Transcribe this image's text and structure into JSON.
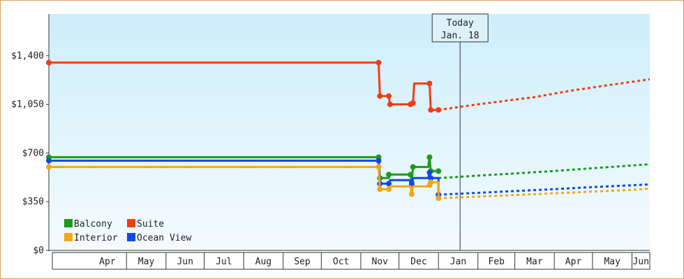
{
  "chart_data": {
    "type": "line",
    "x_unit": "date",
    "y_unit": "USD",
    "ylim": [
      0,
      1700
    ],
    "yticks": [
      {
        "value": 0,
        "label": "$0"
      },
      {
        "value": 350,
        "label": "$350"
      },
      {
        "value": 700,
        "label": "$700"
      },
      {
        "value": 1050,
        "label": "$1,050"
      },
      {
        "value": 1400,
        "label": "$1,400"
      }
    ],
    "xlim": [
      "2023-03-01",
      "2024-06-15"
    ],
    "months": [
      {
        "label": "Apr",
        "start": "2023-04-01",
        "end": "2023-05-01"
      },
      {
        "label": "May",
        "start": "2023-05-01",
        "end": "2023-06-01"
      },
      {
        "label": "Jun",
        "start": "2023-06-01",
        "end": "2023-07-01"
      },
      {
        "label": "Jul",
        "start": "2023-07-01",
        "end": "2023-08-01"
      },
      {
        "label": "Aug",
        "start": "2023-08-01",
        "end": "2023-09-01"
      },
      {
        "label": "Sep",
        "start": "2023-09-01",
        "end": "2023-10-01"
      },
      {
        "label": "Oct",
        "start": "2023-10-01",
        "end": "2023-11-01"
      },
      {
        "label": "Nov",
        "start": "2023-11-01",
        "end": "2023-12-01"
      },
      {
        "label": "Dec",
        "start": "2023-12-01",
        "end": "2024-01-01"
      },
      {
        "label": "Jan",
        "start": "2024-01-01",
        "end": "2024-02-01"
      },
      {
        "label": "Feb",
        "start": "2024-02-01",
        "end": "2024-03-01"
      },
      {
        "label": "Mar",
        "start": "2024-03-01",
        "end": "2024-04-01"
      },
      {
        "label": "Apr",
        "start": "2024-04-01",
        "end": "2024-05-01"
      },
      {
        "label": "May",
        "start": "2024-05-01",
        "end": "2024-06-01"
      },
      {
        "label": "Jun",
        "start": "2024-06-01",
        "end": "2024-06-15"
      }
    ],
    "today": {
      "line1": "Today",
      "line2": "Jan. 18",
      "date": "2024-01-18"
    },
    "grid": false,
    "background": {
      "top": "#cdeefb",
      "bottom": "#f4fbfe"
    },
    "legend_position": "bottom-left",
    "series": [
      {
        "name": "Suite",
        "color": "#f23c14",
        "points": [
          [
            "2023-03-01",
            1350
          ],
          [
            "2023-11-15",
            1350
          ],
          [
            "2023-11-16",
            1110
          ],
          [
            "2023-11-23",
            1110
          ],
          [
            "2023-11-24",
            1050
          ],
          [
            "2023-12-10",
            1050
          ],
          [
            "2023-12-12",
            1060
          ],
          [
            "2023-12-13",
            1200
          ],
          [
            "2023-12-25",
            1200
          ],
          [
            "2023-12-26",
            1010
          ],
          [
            "2024-01-01",
            1010
          ]
        ],
        "markers": [
          [
            "2023-03-01",
            1350
          ],
          [
            "2023-11-15",
            1350
          ],
          [
            "2023-11-16",
            1110
          ],
          [
            "2023-11-23",
            1110
          ],
          [
            "2023-11-24",
            1050
          ],
          [
            "2023-12-10",
            1050
          ],
          [
            "2023-12-12",
            1060
          ],
          [
            "2023-12-25",
            1200
          ],
          [
            "2023-12-26",
            1010
          ],
          [
            "2024-01-01",
            1010
          ]
        ],
        "forecast": [
          [
            "2024-01-01",
            1010
          ],
          [
            "2024-02-01",
            1050
          ],
          [
            "2024-03-15",
            1100
          ],
          [
            "2024-04-15",
            1150
          ],
          [
            "2024-05-15",
            1190
          ],
          [
            "2024-06-15",
            1230
          ]
        ]
      },
      {
        "name": "Balcony",
        "color": "#1a9b1a",
        "points": [
          [
            "2023-03-01",
            670
          ],
          [
            "2023-11-15",
            670
          ],
          [
            "2023-11-16",
            520
          ],
          [
            "2023-11-23",
            520
          ],
          [
            "2023-11-24",
            545
          ],
          [
            "2023-12-10",
            545
          ],
          [
            "2023-12-11",
            490
          ],
          [
            "2023-12-12",
            600
          ],
          [
            "2023-12-24",
            600
          ],
          [
            "2023-12-25",
            670
          ],
          [
            "2023-12-26",
            570
          ],
          [
            "2024-01-01",
            570
          ]
        ],
        "markers": [
          [
            "2023-03-01",
            670
          ],
          [
            "2023-11-15",
            670
          ],
          [
            "2023-11-16",
            520
          ],
          [
            "2023-11-23",
            545
          ],
          [
            "2023-12-10",
            545
          ],
          [
            "2023-12-11",
            490
          ],
          [
            "2023-12-12",
            600
          ],
          [
            "2023-12-25",
            670
          ],
          [
            "2023-12-26",
            570
          ],
          [
            "2024-01-01",
            570
          ]
        ],
        "forecast": [
          [
            "2024-01-01",
            520
          ],
          [
            "2024-02-15",
            545
          ],
          [
            "2024-03-31",
            570
          ],
          [
            "2024-04-30",
            590
          ],
          [
            "2024-05-31",
            610
          ],
          [
            "2024-06-15",
            620
          ]
        ]
      },
      {
        "name": "Ocean View",
        "color": "#1446e8",
        "points": [
          [
            "2023-03-01",
            645
          ],
          [
            "2023-11-15",
            645
          ],
          [
            "2023-11-16",
            480
          ],
          [
            "2023-11-23",
            480
          ],
          [
            "2023-11-24",
            505
          ],
          [
            "2023-12-10",
            505
          ],
          [
            "2023-12-11",
            475
          ],
          [
            "2023-12-12",
            520
          ],
          [
            "2023-12-24",
            520
          ],
          [
            "2023-12-25",
            560
          ],
          [
            "2023-12-26",
            520
          ],
          [
            "2024-01-01",
            520
          ],
          [
            "2024-01-01",
            400
          ]
        ],
        "markers": [
          [
            "2023-03-01",
            645
          ],
          [
            "2023-11-15",
            645
          ],
          [
            "2023-11-16",
            480
          ],
          [
            "2023-11-23",
            480
          ],
          [
            "2023-12-11",
            475
          ],
          [
            "2023-12-25",
            560
          ],
          [
            "2023-12-26",
            520
          ],
          [
            "2024-01-01",
            400
          ]
        ],
        "forecast": [
          [
            "2024-01-01",
            400
          ],
          [
            "2024-02-15",
            420
          ],
          [
            "2024-03-31",
            440
          ],
          [
            "2024-04-30",
            455
          ],
          [
            "2024-05-31",
            468
          ],
          [
            "2024-06-15",
            475
          ]
        ]
      },
      {
        "name": "Interior",
        "color": "#f5a616",
        "points": [
          [
            "2023-03-01",
            600
          ],
          [
            "2023-11-15",
            600
          ],
          [
            "2023-11-16",
            440
          ],
          [
            "2023-11-23",
            440
          ],
          [
            "2023-11-24",
            460
          ],
          [
            "2023-12-10",
            460
          ],
          [
            "2023-12-11",
            405
          ],
          [
            "2023-12-12",
            460
          ],
          [
            "2023-12-24",
            460
          ],
          [
            "2023-12-25",
            470
          ],
          [
            "2023-12-26",
            490
          ],
          [
            "2024-01-01",
            490
          ],
          [
            "2024-01-01",
            375
          ]
        ],
        "markers": [
          [
            "2023-03-01",
            600
          ],
          [
            "2023-11-15",
            600
          ],
          [
            "2023-11-16",
            440
          ],
          [
            "2023-11-23",
            440
          ],
          [
            "2023-12-11",
            405
          ],
          [
            "2023-12-25",
            470
          ],
          [
            "2023-12-26",
            490
          ],
          [
            "2024-01-01",
            375
          ]
        ],
        "forecast": [
          [
            "2024-01-01",
            375
          ],
          [
            "2024-02-15",
            392
          ],
          [
            "2024-03-31",
            410
          ],
          [
            "2024-04-30",
            422
          ],
          [
            "2024-05-31",
            435
          ],
          [
            "2024-06-15",
            445
          ]
        ]
      }
    ],
    "legend": [
      {
        "name": "Balcony",
        "color": "#1a9b1a"
      },
      {
        "name": "Suite",
        "color": "#f23c14"
      },
      {
        "name": "Interior",
        "color": "#f5a616"
      },
      {
        "name": "Ocean View",
        "color": "#1446e8"
      }
    ]
  }
}
